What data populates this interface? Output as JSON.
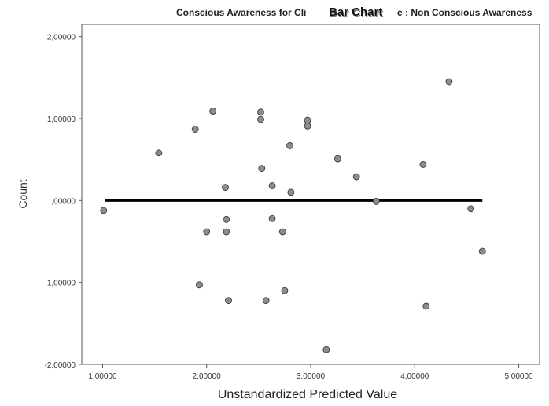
{
  "chart_data": {
    "type": "scatter",
    "title_overlay": "Bar Chart",
    "title": "Conscious Awareness for Clinical Change : Non Conscious Awareness",
    "title_visible": "Conscious Awareness for Cli",
    "title_tail": "e : Non Conscious Awareness",
    "xlabel": "Unstandardized Predicted Value",
    "ylabel": "Count",
    "xlim": [
      0.8,
      5.2
    ],
    "ylim": [
      -2.0,
      2.15
    ],
    "x_ticks": [
      1,
      2,
      3,
      4,
      5
    ],
    "x_tick_labels": [
      "1,00000",
      "2,00000",
      "3,00000",
      "4,00000",
      "5,00000"
    ],
    "y_ticks": [
      2,
      1,
      0,
      -1,
      -2
    ],
    "y_tick_labels": [
      "2,00000",
      "1,00000",
      ",00000",
      "-1,00000",
      "-2,00000"
    ],
    "reference_line": {
      "y": 0,
      "x_from": 1.02,
      "x_to": 4.65
    },
    "grid": false,
    "points": [
      {
        "x": 1.01,
        "y": -0.12
      },
      {
        "x": 1.54,
        "y": 0.58
      },
      {
        "x": 1.89,
        "y": 0.87
      },
      {
        "x": 1.93,
        "y": -1.03
      },
      {
        "x": 2.0,
        "y": -0.38
      },
      {
        "x": 2.06,
        "y": 1.09
      },
      {
        "x": 2.18,
        "y": 0.16
      },
      {
        "x": 2.19,
        "y": -0.23
      },
      {
        "x": 2.19,
        "y": -0.38
      },
      {
        "x": 2.21,
        "y": -1.22
      },
      {
        "x": 2.52,
        "y": 1.08
      },
      {
        "x": 2.52,
        "y": 0.99
      },
      {
        "x": 2.53,
        "y": 0.39
      },
      {
        "x": 2.57,
        "y": -1.22
      },
      {
        "x": 2.63,
        "y": 0.18
      },
      {
        "x": 2.63,
        "y": -0.22
      },
      {
        "x": 2.73,
        "y": -0.38
      },
      {
        "x": 2.75,
        "y": -1.1
      },
      {
        "x": 2.8,
        "y": 0.67
      },
      {
        "x": 2.81,
        "y": 0.1
      },
      {
        "x": 2.97,
        "y": 0.98
      },
      {
        "x": 2.97,
        "y": 0.91
      },
      {
        "x": 3.15,
        "y": -1.82
      },
      {
        "x": 3.26,
        "y": 0.51
      },
      {
        "x": 3.44,
        "y": 0.29
      },
      {
        "x": 3.63,
        "y": -0.01
      },
      {
        "x": 4.08,
        "y": 0.44
      },
      {
        "x": 4.11,
        "y": -1.29
      },
      {
        "x": 4.33,
        "y": 1.45
      },
      {
        "x": 4.54,
        "y": -0.1
      },
      {
        "x": 4.65,
        "y": -0.62
      }
    ]
  }
}
